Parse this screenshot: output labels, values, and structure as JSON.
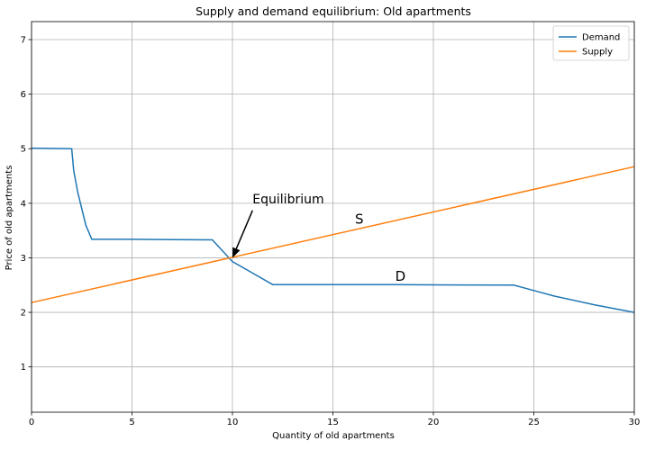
{
  "chart_data": {
    "type": "line",
    "title": "Supply and demand equilibrium: Old apartments",
    "xlabel": "Quantity of old apartments",
    "ylabel": "Price of old apartments",
    "xlim": [
      0,
      30
    ],
    "ylim": [
      0.17,
      7.33
    ],
    "xticks": [
      0,
      5,
      10,
      15,
      20,
      25,
      30
    ],
    "yticks": [
      1,
      2,
      3,
      4,
      5,
      6,
      7
    ],
    "grid": true,
    "legend_position": "top-right",
    "series": [
      {
        "name": "Demand",
        "color": "#1f77b4",
        "x": [
          0,
          2,
          2.1,
          2.3,
          2.5,
          2.7,
          3,
          5,
          7,
          9,
          10,
          11,
          12,
          15,
          18,
          20,
          24,
          25,
          26,
          28,
          30
        ],
        "y": [
          5.01,
          5.0,
          4.6,
          4.2,
          3.9,
          3.6,
          3.34,
          3.34,
          3.335,
          3.33,
          2.93,
          2.72,
          2.51,
          2.51,
          2.51,
          2.505,
          2.5,
          2.4,
          2.3,
          2.14,
          2.0
        ]
      },
      {
        "name": "Supply",
        "color": "#ff7f0e",
        "x": [
          0,
          30
        ],
        "y": [
          2.18,
          4.67
        ]
      }
    ],
    "annotations": [
      {
        "text": "Equilibrium",
        "x": 11,
        "y": 4.0,
        "arrow_to": [
          10,
          3.0
        ]
      },
      {
        "text": "S",
        "x": 16.1,
        "y": 3.63
      },
      {
        "text": "D",
        "x": 18.1,
        "y": 2.58
      }
    ]
  }
}
